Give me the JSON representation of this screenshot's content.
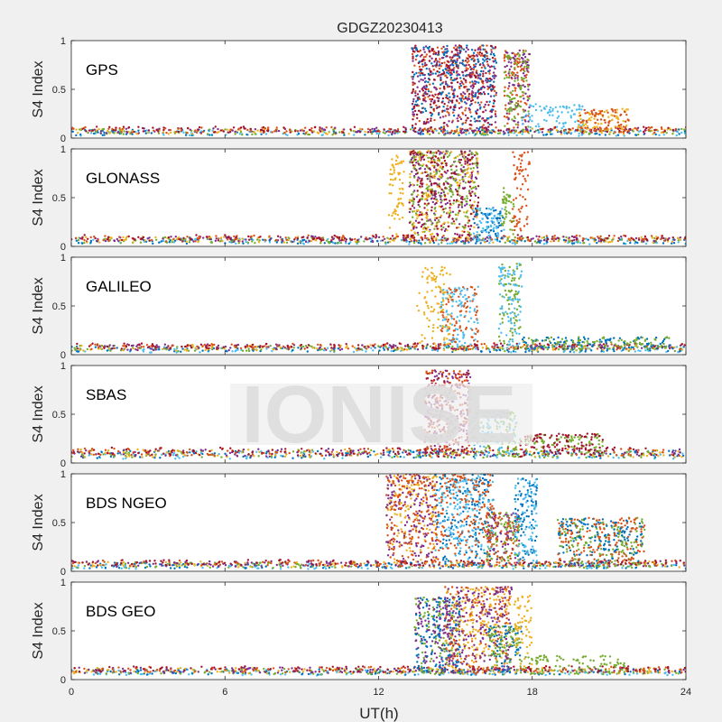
{
  "figure": {
    "title": "GDGZ20230413",
    "xlabel": "UT(h)",
    "watermark": "IONISE"
  },
  "colors": {
    "figure_bg": "#f0f0f0",
    "axes_bg": "#ffffff",
    "axis_line": "#262626",
    "watermark_band": "#efefef",
    "watermark_text": "#dcdcdc",
    "series": [
      "#0072BD",
      "#D95319",
      "#EDB120",
      "#7E2F8E",
      "#77AC30",
      "#4DBEEE",
      "#A2142F"
    ]
  },
  "chart_data": [
    {
      "type": "scatter",
      "label": "GPS",
      "ylabel": "S4 Index",
      "xlim": [
        0,
        24
      ],
      "ylim": [
        0,
        1
      ],
      "xticks": [
        0,
        6,
        12,
        18,
        24
      ],
      "yticks": [
        0,
        0.5,
        1
      ],
      "ytick_labels": [
        "0",
        "0.5",
        "1"
      ],
      "grid": false,
      "baseline": {
        "level": 0.07,
        "spread": 0.03
      },
      "bursts": [
        {
          "x": [
            13.3,
            16.6
          ],
          "ymax": 0.95,
          "series": [
            1,
            3,
            0,
            6
          ]
        },
        {
          "x": [
            16.9,
            17.9
          ],
          "ymax": 0.9,
          "series": [
            1,
            3,
            4
          ]
        },
        {
          "x": [
            17.6,
            20.0
          ],
          "ymax": 0.35,
          "series": [
            5
          ]
        },
        {
          "x": [
            19.8,
            21.8
          ],
          "ymax": 0.3,
          "series": [
            2,
            1
          ]
        }
      ]
    },
    {
      "type": "scatter",
      "label": "GLONASS",
      "ylabel": "S4 Index",
      "xlim": [
        0,
        24
      ],
      "ylim": [
        0,
        1
      ],
      "xticks": [
        0,
        6,
        12,
        18,
        24
      ],
      "yticks": [
        0,
        0.5,
        1
      ],
      "ytick_labels": [
        "0",
        "0.5",
        "1"
      ],
      "grid": false,
      "baseline": {
        "level": 0.07,
        "spread": 0.03
      },
      "bursts": [
        {
          "x": [
            12.4,
            13.0
          ],
          "ymax": 0.95,
          "series": [
            2
          ]
        },
        {
          "x": [
            13.2,
            15.9
          ],
          "ymax": 0.98,
          "series": [
            3,
            2,
            4,
            6
          ]
        },
        {
          "x": [
            15.7,
            16.9
          ],
          "ymax": 0.4,
          "series": [
            0,
            5
          ]
        },
        {
          "x": [
            16.8,
            17.3
          ],
          "ymax": 0.6,
          "series": [
            4
          ]
        },
        {
          "x": [
            17.2,
            17.9
          ],
          "ymax": 0.97,
          "series": [
            1
          ]
        }
      ]
    },
    {
      "type": "scatter",
      "label": "GALILEO",
      "ylabel": "S4 Index",
      "xlim": [
        0,
        24
      ],
      "ylim": [
        0,
        1
      ],
      "xticks": [
        0,
        6,
        12,
        18,
        24
      ],
      "yticks": [
        0,
        0.5,
        1
      ],
      "ytick_labels": [
        "0",
        "0.5",
        "1"
      ],
      "grid": false,
      "baseline": {
        "level": 0.07,
        "spread": 0.03
      },
      "bursts": [
        {
          "x": [
            13.5,
            14.8
          ],
          "ymax": 0.9,
          "series": [
            2
          ]
        },
        {
          "x": [
            14.4,
            15.9
          ],
          "ymax": 0.7,
          "series": [
            1,
            5
          ]
        },
        {
          "x": [
            16.7,
            17.6
          ],
          "ymax": 0.95,
          "series": [
            4,
            5
          ]
        },
        {
          "x": [
            17.6,
            23.5
          ],
          "ymax": 0.18,
          "series": [
            0,
            4
          ]
        }
      ]
    },
    {
      "type": "scatter",
      "label": "SBAS",
      "ylabel": "S4 Index",
      "xlim": [
        0,
        24
      ],
      "ylim": [
        0,
        1
      ],
      "xticks": [
        0,
        6,
        12,
        18,
        24
      ],
      "yticks": [
        0,
        0.5,
        1
      ],
      "ytick_labels": [
        "0",
        "0.5",
        "1"
      ],
      "grid": false,
      "baseline": {
        "level": 0.1,
        "spread": 0.04
      },
      "bursts": [
        {
          "x": [
            13.8,
            15.6
          ],
          "ymax": 0.95,
          "series": [
            6,
            3,
            1
          ]
        },
        {
          "x": [
            15.6,
            17.4
          ],
          "ymax": 0.55,
          "series": [
            4,
            5
          ]
        },
        {
          "x": [
            17.5,
            20.8
          ],
          "ymax": 0.3,
          "series": [
            4,
            6
          ]
        }
      ]
    },
    {
      "type": "scatter",
      "label": "BDS NGEO",
      "ylabel": "S4 Index",
      "xlim": [
        0,
        24
      ],
      "ylim": [
        0,
        1
      ],
      "xticks": [
        0,
        6,
        12,
        18,
        24
      ],
      "yticks": [
        0,
        0.5,
        1
      ],
      "ytick_labels": [
        "0",
        "0.5",
        "1"
      ],
      "grid": false,
      "baseline": {
        "level": 0.07,
        "spread": 0.03
      },
      "bursts": [
        {
          "x": [
            12.3,
            14.3
          ],
          "ymax": 1.0,
          "series": [
            2,
            3,
            1
          ]
        },
        {
          "x": [
            14.2,
            16.5
          ],
          "ymax": 1.0,
          "series": [
            0,
            5,
            1
          ]
        },
        {
          "x": [
            16.2,
            17.5
          ],
          "ymax": 0.6,
          "series": [
            3,
            4,
            1
          ]
        },
        {
          "x": [
            17.3,
            18.2
          ],
          "ymax": 0.95,
          "series": [
            0,
            5
          ]
        },
        {
          "x": [
            19.0,
            22.4
          ],
          "ymax": 0.55,
          "series": [
            4,
            0,
            1
          ]
        }
      ]
    },
    {
      "type": "scatter",
      "label": "BDS GEO",
      "ylabel": "S4 Index",
      "xlim": [
        0,
        24
      ],
      "ylim": [
        0,
        1
      ],
      "xticks": [
        0,
        6,
        12,
        18,
        24
      ],
      "yticks": [
        0,
        0.5,
        1
      ],
      "ytick_labels": [
        "0",
        "0.5",
        "1"
      ],
      "grid": false,
      "baseline": {
        "level": 0.09,
        "spread": 0.03
      },
      "bursts": [
        {
          "x": [
            13.4,
            15.2
          ],
          "ymax": 0.85,
          "series": [
            4,
            3,
            0
          ]
        },
        {
          "x": [
            14.6,
            17.2
          ],
          "ymax": 0.95,
          "series": [
            1,
            2,
            3
          ]
        },
        {
          "x": [
            16.3,
            17.6
          ],
          "ymax": 0.55,
          "series": [
            0,
            4
          ]
        },
        {
          "x": [
            17.3,
            18.0
          ],
          "ymax": 0.9,
          "series": [
            2
          ]
        },
        {
          "x": [
            17.7,
            21.6
          ],
          "ymax": 0.25,
          "series": [
            4
          ]
        }
      ]
    }
  ]
}
